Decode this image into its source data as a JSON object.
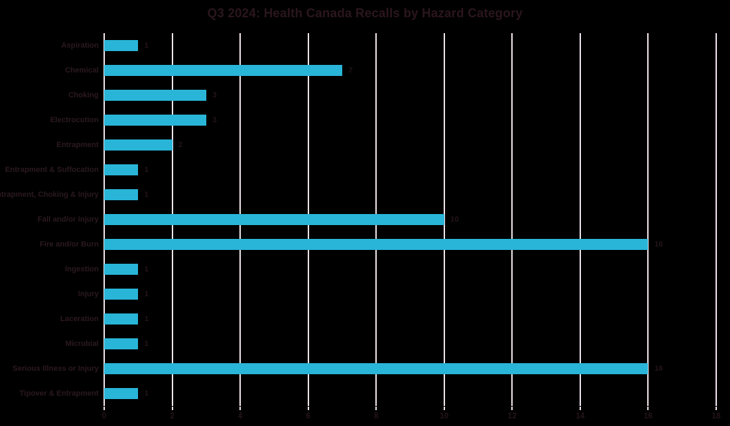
{
  "title": "Q3 2024: Health Canada Recalls by Hazard Category",
  "colors": {
    "background": "#000000",
    "bar": "#29b5d8",
    "gridline": "#efe3eb",
    "text": "#2b191f",
    "title_text": "#2b161d"
  },
  "chart_data": {
    "type": "bar",
    "orientation": "horizontal",
    "title": "Q3 2024: Health Canada Recalls by Hazard Category",
    "xlabel": "",
    "ylabel": "",
    "categories": [
      "Aspiration",
      "Chemical",
      "Choking",
      "Electrocution",
      "Entrapment",
      "Entrapment & Suffocation",
      "Entrapment, Choking & Injury",
      "Fall and/or Injury",
      "Fire and/or Burn",
      "Ingestion",
      "Injury",
      "Laceration",
      "Microbial",
      "Serious Illness or Injury",
      "Tipover & Entrapment"
    ],
    "values": [
      1,
      7,
      3,
      3,
      2,
      1,
      1,
      10,
      16,
      1,
      1,
      1,
      1,
      16,
      1
    ],
    "xlim": [
      0,
      18
    ],
    "xticks": [
      0,
      2,
      4,
      6,
      8,
      10,
      12,
      14,
      16,
      18
    ],
    "grid": "vertical",
    "data_labels": true,
    "legend": "none"
  }
}
